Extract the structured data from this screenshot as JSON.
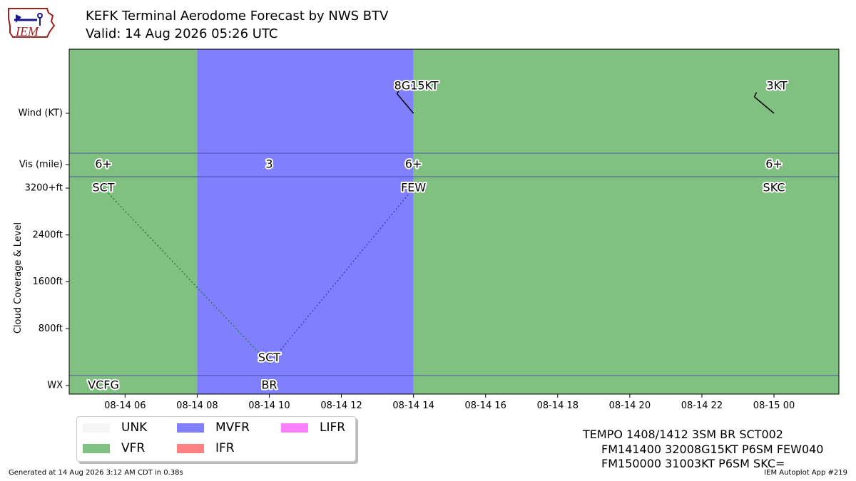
{
  "header": {
    "title": "KEFK Terminal Aerodome Forecast by NWS BTV",
    "valid": "Valid: 14 Aug 2026 05:26 UTC",
    "logo_text": "IEM"
  },
  "chart_data": {
    "type": "timeline",
    "x_range": [
      "2026-08-14 04:45",
      "2026-08-15 01:45"
    ],
    "x_ticks": [
      "08-14 06",
      "08-14 08",
      "08-14 10",
      "08-14 12",
      "08-14 14",
      "08-14 16",
      "08-14 18",
      "08-14 20",
      "08-14 22",
      "08-15 00"
    ],
    "x_tick_hours": [
      6,
      8,
      10,
      12,
      14,
      16,
      18,
      20,
      22,
      24
    ],
    "x_range_hours": [
      4.45,
      25.8
    ],
    "y_ticks": {
      "wind": "Wind (KT)",
      "vis": "Vis (mile)",
      "clouds": [
        "3200+ft",
        "2400ft",
        "1600ft",
        "800ft"
      ],
      "cloud_values": [
        3200,
        2400,
        1600,
        800
      ],
      "wx": "WX"
    },
    "ylabel": "Cloud Coverage & Level",
    "category_bands": [
      {
        "from": 4.45,
        "to": 8,
        "category": "VFR"
      },
      {
        "from": 8,
        "to": 14,
        "category": "MVFR"
      },
      {
        "from": 14,
        "to": 25.8,
        "category": "VFR"
      }
    ],
    "wind": [
      {
        "hour": 14,
        "label": "8G15KT",
        "direction": 320
      },
      {
        "hour": 24,
        "label": "3KT",
        "direction": 310
      }
    ],
    "visibility": [
      {
        "hour": 5.4,
        "label": "6+"
      },
      {
        "hour": 10,
        "label": "3"
      },
      {
        "hour": 14,
        "label": "6+"
      },
      {
        "hour": 24,
        "label": "6+"
      }
    ],
    "clouds": [
      {
        "hour": 5.4,
        "label": "SCT",
        "level_ft": 3200
      },
      {
        "hour": 10,
        "label": "SCT",
        "level_ft": 200
      },
      {
        "hour": 14,
        "label": "FEW",
        "level_ft": 3200
      },
      {
        "hour": 24,
        "label": "SKC",
        "level_ft": 3200
      }
    ],
    "cloud_lines": [
      {
        "from": 0,
        "to": 1,
        "color": "#2a7a4a"
      },
      {
        "from": 1,
        "to": 2,
        "color": "#3c3ccc"
      }
    ],
    "wx": [
      {
        "hour": 5.4,
        "label": "VCFG"
      },
      {
        "hour": 10,
        "label": "BR"
      }
    ],
    "colors": {
      "UNK": "#f5f5f5",
      "VFR": "#80c080",
      "MVFR": "#8080ff",
      "IFR": "#ff8080",
      "LIFR": "#ff80ff",
      "separator": "#3a3aa0"
    },
    "legend": {
      "entries": [
        "UNK",
        "MVFR",
        "LIFR",
        "VFR",
        "IFR"
      ],
      "placement": "below-left"
    }
  },
  "raw_taf": [
    "TEMPO 1408/1412 3SM BR SCT002",
    "FM141400 32008G15KT P6SM FEW040",
    "FM150000 31003KT P6SM SKC="
  ],
  "footer": {
    "generated": "Generated at 14 Aug 2026 3:12 AM CDT in 0.38s",
    "app": "IEM Autoplot App #219"
  }
}
